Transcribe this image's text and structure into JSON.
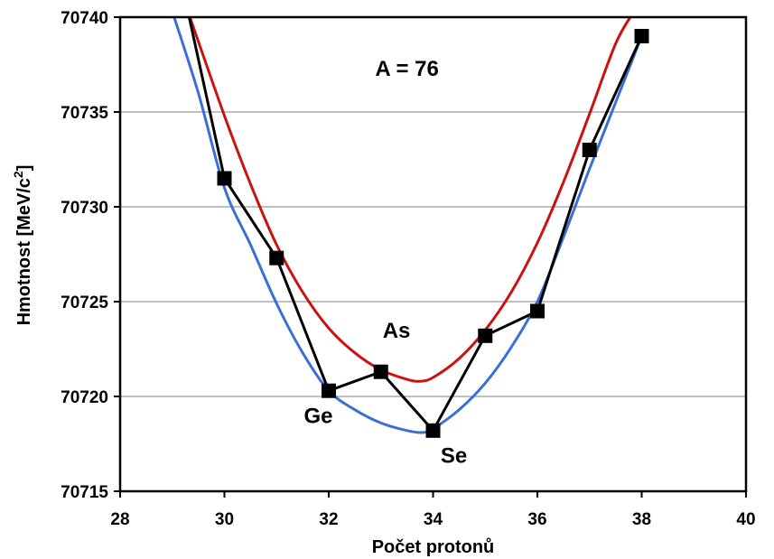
{
  "chart_data": {
    "type": "line",
    "annotation_title": "A = 76",
    "xlabel": "Počet protonů",
    "ylabel": "Hmotnost [MeV/c",
    "ylabel_sup": "2",
    "ylabel_end": "]",
    "xlim": [
      28,
      40
    ],
    "ylim": [
      70715,
      70740
    ],
    "x_ticks": [
      28,
      30,
      32,
      34,
      36,
      38,
      40
    ],
    "y_ticks": [
      70715,
      70720,
      70725,
      70730,
      70735,
      70740
    ],
    "grid": "horizontal",
    "colors": {
      "data": "#000000",
      "red_curve": "#cc1111",
      "blue_curve": "#3a6fd8",
      "grid": "#808080"
    },
    "series": [
      {
        "type": "points",
        "color": "#000000",
        "x": [
          29.3,
          30,
          31,
          32,
          33,
          34,
          35,
          36,
          37,
          38
        ],
        "y": [
          70740.3,
          70731.5,
          70727.3,
          70720.3,
          70721.3,
          70718.2,
          70723.2,
          70724.5,
          70733.0,
          70739.0
        ]
      },
      {
        "type": "curve",
        "color": "#cc1111",
        "x": [
          29.3,
          30.0,
          30.5,
          31.0,
          31.5,
          32.0,
          32.5,
          33.0,
          33.5,
          33.75,
          34.0,
          34.5,
          35.0,
          35.5,
          36.0,
          36.5,
          37.0,
          37.5,
          37.85
        ],
        "y": [
          70740.3,
          70734.8,
          70731.2,
          70728.0,
          70725.5,
          70723.6,
          70722.3,
          70721.4,
          70720.9,
          70720.8,
          70721.0,
          70722.0,
          70723.5,
          70725.5,
          70728.1,
          70731.3,
          70734.9,
          70738.6,
          70740.3
        ]
      },
      {
        "type": "curve",
        "color": "#3a6fd8",
        "x": [
          29.0,
          29.5,
          30.0,
          30.5,
          31.0,
          31.5,
          32.0,
          32.5,
          33.0,
          33.5,
          33.8,
          34.0,
          34.5,
          35.0,
          35.5,
          36.0,
          36.5,
          37.0,
          37.5,
          38.0
        ],
        "y": [
          70740.3,
          70736.0,
          70731.0,
          70728.0,
          70724.9,
          70722.3,
          70720.3,
          70719.3,
          70718.6,
          70718.2,
          70718.1,
          70718.3,
          70719.3,
          70720.7,
          70722.6,
          70725.0,
          70728.4,
          70732.0,
          70735.5,
          70739.0
        ]
      }
    ],
    "annotations": [
      {
        "text": "As",
        "x": 33.3,
        "y": 70723.1
      },
      {
        "text": "Ge",
        "x": 31.8,
        "y": 70718.6
      },
      {
        "text": "Se",
        "x": 34.4,
        "y": 70716.5
      }
    ]
  }
}
